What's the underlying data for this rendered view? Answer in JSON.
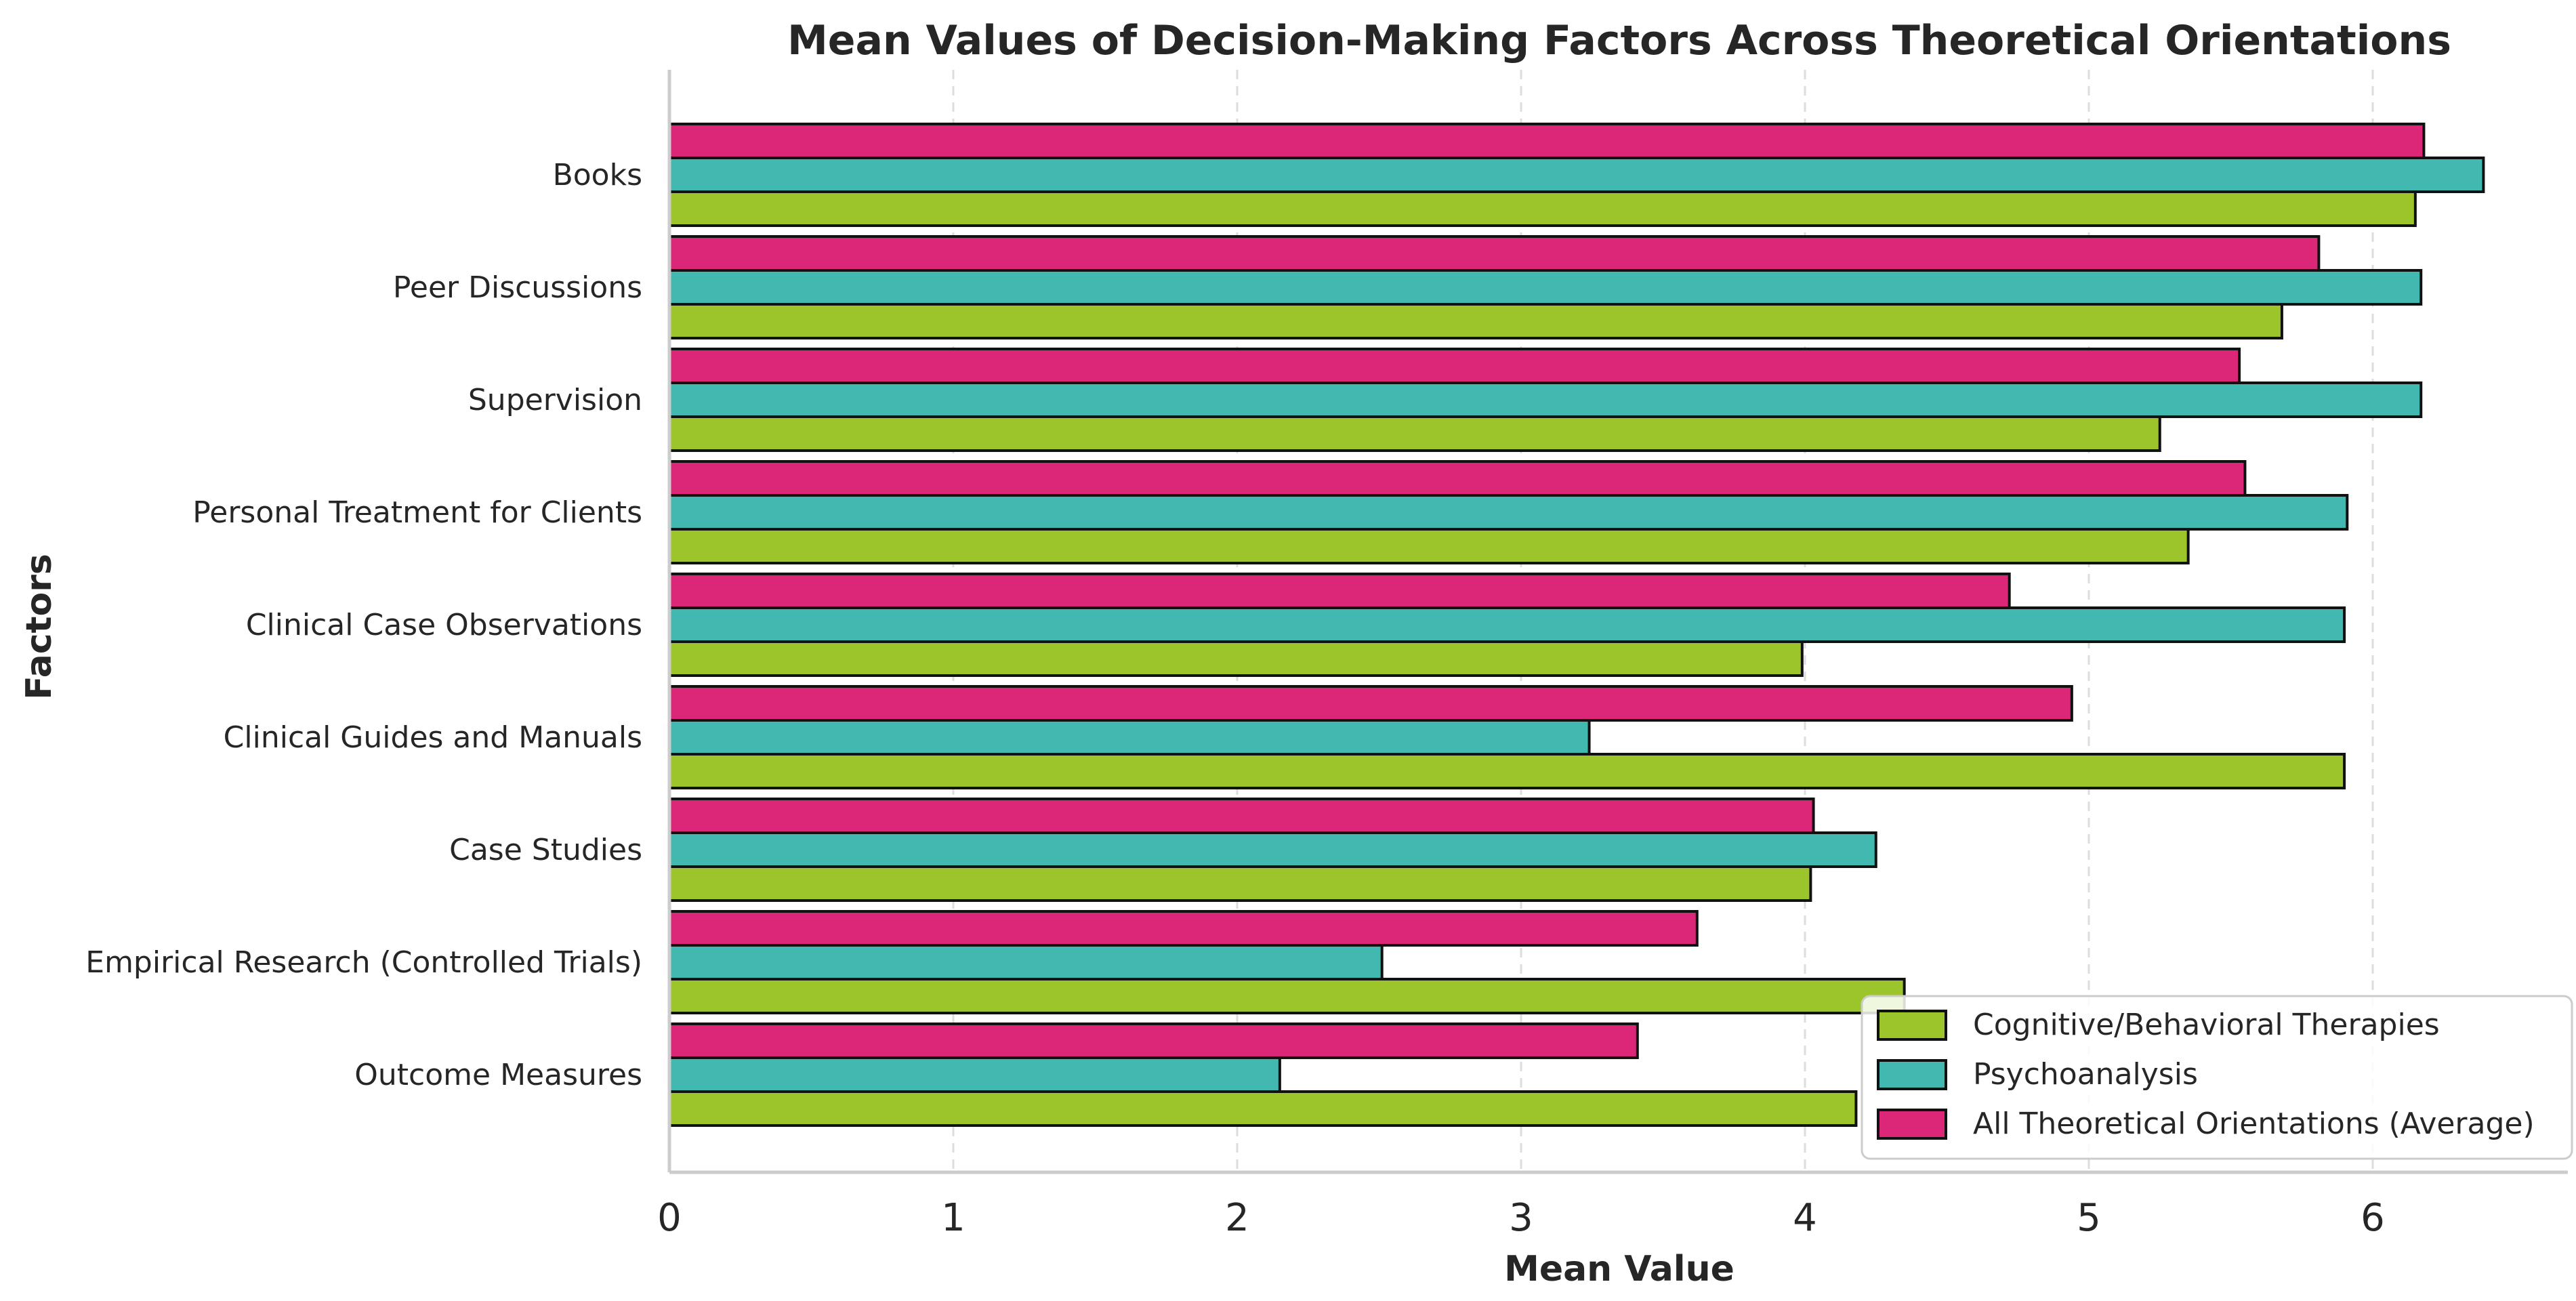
{
  "chart_data": {
    "type": "bar",
    "orientation": "horizontal",
    "title": "Mean Values of Decision-Making Factors Across Theoretical Orientations",
    "xlabel": "Mean Value",
    "ylabel": "Factors",
    "xlim": [
      0,
      6.65
    ],
    "xticks": [
      0,
      1,
      2,
      3,
      4,
      5,
      6
    ],
    "grid": "x-dashed",
    "legend_position": "bottom-right",
    "categories": [
      "Books",
      "Peer Discussions",
      "Supervision",
      "Personal Treatment for Clients",
      "Clinical Case Observations",
      "Clinical Guides and Manuals",
      "Case Studies",
      "Empirical Research (Controlled Trials)",
      "Outcome Measures"
    ],
    "series": [
      {
        "name": "Cognitive/Behavioral Therapies",
        "color": "#9bc52a",
        "values": [
          6.15,
          5.68,
          5.25,
          5.35,
          3.99,
          5.9,
          4.02,
          4.35,
          4.18
        ]
      },
      {
        "name": "Psychoanalysis",
        "color": "#41b8b0",
        "values": [
          6.39,
          6.17,
          6.17,
          5.91,
          5.9,
          3.24,
          4.25,
          2.51,
          2.15
        ]
      },
      {
        "name": "All Theoretical Orientations (Average)",
        "color": "#dc2778",
        "values": [
          6.18,
          5.81,
          5.53,
          5.55,
          4.72,
          4.94,
          4.03,
          3.62,
          3.41
        ]
      }
    ]
  }
}
